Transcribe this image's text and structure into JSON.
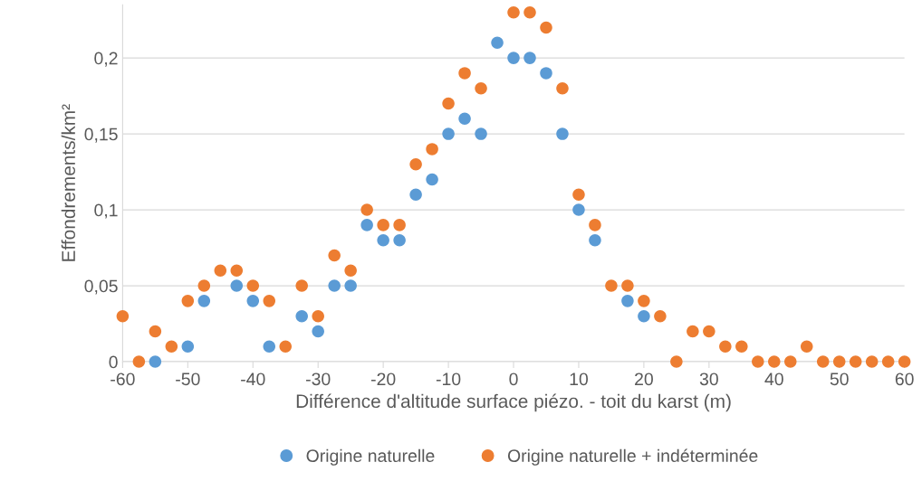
{
  "chart_data": {
    "type": "scatter",
    "xlabel": "Différence d'altitude surface piézo. - toit du karst (m)",
    "ylabel": "Effondrements/km²",
    "xlim": [
      -60,
      60
    ],
    "xticks": [
      -60,
      -50,
      -40,
      -30,
      -20,
      -10,
      0,
      10,
      20,
      30,
      40,
      50,
      60
    ],
    "ylim": [
      0,
      0.235
    ],
    "yticks": [
      0,
      {
        "value": 0.05,
        "label": "0,05"
      },
      {
        "value": 0.1,
        "label": "0,1"
      },
      {
        "value": 0.15,
        "label": "0,15"
      },
      {
        "value": 0.2,
        "label": "0,2"
      }
    ],
    "grid": "y",
    "legend": "bottom",
    "marker": "circle",
    "series": [
      {
        "name": "Origine naturelle",
        "color": "#5b9bd5",
        "x": [
          -55,
          -50,
          -47.5,
          -42.5,
          -40,
          -37.5,
          -32.5,
          -30,
          -27.5,
          -25,
          -22.5,
          -20,
          -17.5,
          -15,
          -12.5,
          -10,
          -7.5,
          -5,
          -2.5,
          0,
          2.5,
          5,
          7.5,
          10,
          12.5,
          17.5,
          20
        ],
        "values": [
          0,
          0.01,
          0.04,
          0.05,
          0.04,
          0.01,
          0.03,
          0.02,
          0.05,
          0.05,
          0.09,
          0.08,
          0.08,
          0.11,
          0.12,
          0.15,
          0.16,
          0.15,
          0.21,
          0.2,
          0.2,
          0.19,
          0.15,
          0.1,
          0.08,
          0.04,
          0.03
        ]
      },
      {
        "name": "Origine naturelle + indéterminée",
        "color": "#ed7d31",
        "x": [
          -60,
          -57.5,
          -55,
          -52.5,
          -50,
          -47.5,
          -45,
          -42.5,
          -40,
          -37.5,
          -35,
          -32.5,
          -30,
          -27.5,
          -25,
          -22.5,
          -20,
          -17.5,
          -15,
          -12.5,
          -10,
          -7.5,
          -5,
          -2.5,
          0,
          2.5,
          5,
          7.5,
          10,
          12.5,
          15,
          17.5,
          20,
          22.5,
          25,
          27.5,
          30,
          32.5,
          35,
          37.5,
          40,
          42.5,
          45,
          47.5,
          50,
          52.5,
          55,
          57.5,
          60
        ],
        "values": [
          0.03,
          0,
          0.02,
          0.01,
          0.04,
          0.05,
          0.06,
          0.06,
          0.05,
          0.04,
          0.01,
          0.05,
          0.03,
          0.07,
          0.06,
          0.1,
          0.09,
          0.09,
          0.13,
          0.14,
          0.17,
          0.19,
          0.18,
          null,
          0.23,
          0.23,
          0.22,
          0.18,
          0.11,
          0.09,
          0.05,
          0.05,
          0.04,
          0.03,
          0,
          0.02,
          0.02,
          0.01,
          0.01,
          0,
          0,
          0,
          0.01,
          0,
          0,
          0,
          0,
          0,
          0
        ]
      }
    ]
  }
}
